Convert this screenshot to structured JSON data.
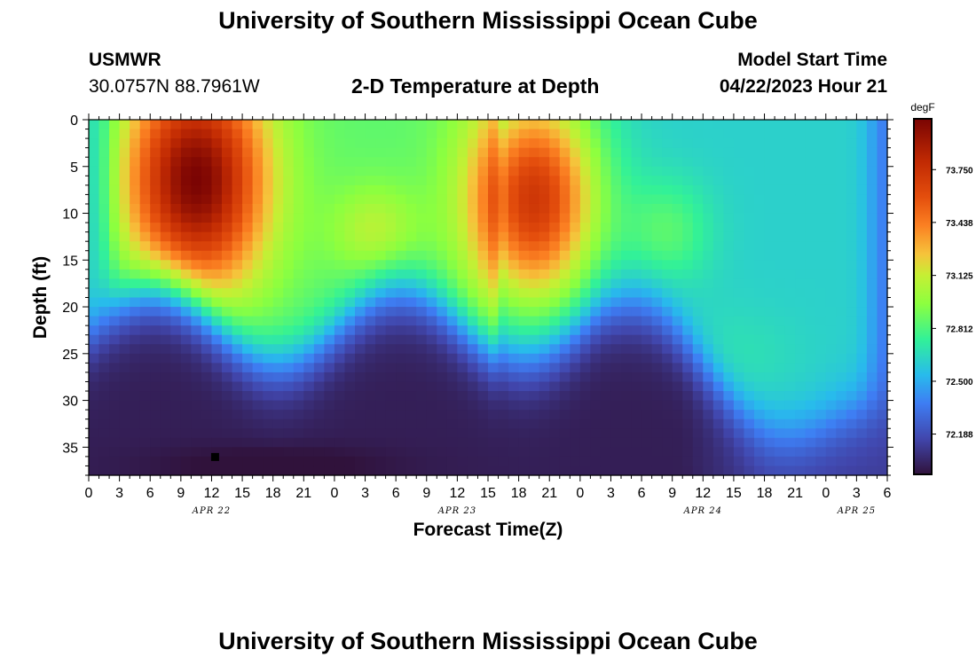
{
  "header": {
    "title": "University of Southern Mississippi Ocean Cube",
    "station": "USMWR",
    "coords": "30.0757N  88.7961W",
    "subtitle": "2-D Temperature at Depth",
    "model_start_label": "Model Start Time",
    "model_start_value": "04/22/2023 Hour 21"
  },
  "footer": {
    "title": "University of Southern Mississippi Ocean Cube"
  },
  "chart_data": {
    "type": "heatmap",
    "title": "2-D Temperature at Depth",
    "xlabel": "Forecast Time(Z)",
    "ylabel": "Depth (ft)",
    "x_unit": "hours since 04/22/2023 00Z",
    "xlim": [
      0,
      78
    ],
    "ylim": [
      0,
      38
    ],
    "x_ticks": [
      0,
      3,
      6,
      9,
      12,
      15,
      18,
      21,
      24,
      27,
      30,
      33,
      36,
      39,
      42,
      45,
      48,
      51,
      54,
      57,
      60,
      63,
      66,
      69,
      72,
      75,
      78
    ],
    "x_tick_labels": [
      "0",
      "3",
      "6",
      "9",
      "12",
      "15",
      "18",
      "21",
      "0",
      "3",
      "6",
      "9",
      "12",
      "15",
      "18",
      "21",
      "0",
      "3",
      "6",
      "9",
      "12",
      "15",
      "18",
      "21",
      "0",
      "3",
      "6"
    ],
    "y_ticks": [
      0,
      5,
      10,
      15,
      20,
      25,
      30,
      35
    ],
    "y_tick_labels": [
      "0",
      "5",
      "10",
      "15",
      "20",
      "25",
      "30",
      "35"
    ],
    "date_labels": [
      {
        "text": "APR 22",
        "x": 12
      },
      {
        "text": "APR 23",
        "x": 36
      },
      {
        "text": "APR 24",
        "x": 60
      },
      {
        "text": "APR 25",
        "x": 75
      }
    ],
    "colorbar": {
      "unit": "degF",
      "min": 71.95,
      "max": 74.05,
      "tick_values": [
        73.75,
        73.438,
        73.125,
        72.812,
        72.5,
        72.188
      ],
      "tick_labels": [
        "73.750",
        "73.438",
        "73.125",
        "72.812",
        "72.500",
        "72.188"
      ]
    },
    "marker": {
      "x": 12.3,
      "y": 36
    },
    "grid": false
  }
}
